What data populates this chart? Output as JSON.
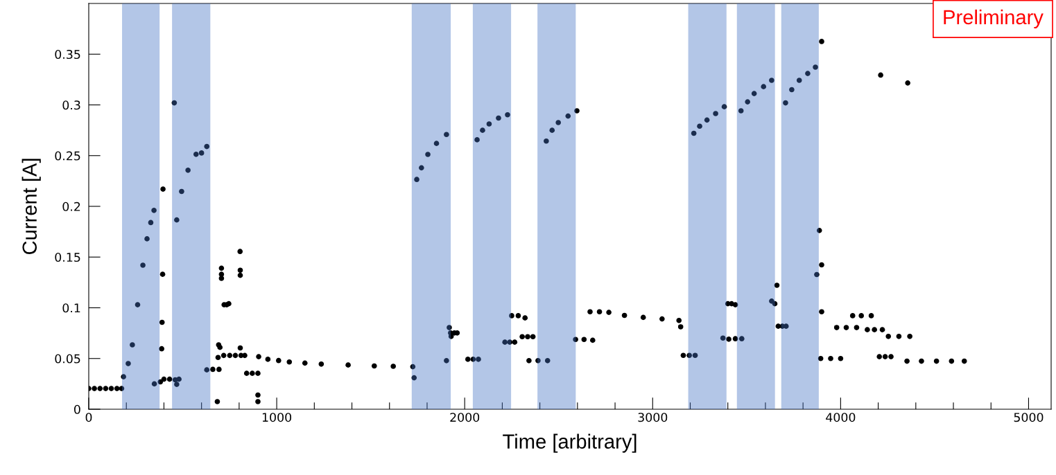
{
  "chart_data": {
    "type": "scatter",
    "xlabel": "Time [arbitrary]",
    "ylabel": "Current [A]",
    "annotations": [
      "Preliminary"
    ],
    "marker": "circle",
    "grid": false,
    "legend": false,
    "xlim": [
      0,
      5120
    ],
    "ylim": [
      0,
      0.4
    ],
    "xticks": [
      0,
      {
        "value": 200,
        "label": null
      },
      {
        "value": 400,
        "label": null
      },
      {
        "value": 600,
        "label": null
      },
      {
        "value": 800,
        "label": null
      },
      1000,
      {
        "value": 1200,
        "label": null
      },
      {
        "value": 1400,
        "label": null
      },
      {
        "value": 1600,
        "label": null
      },
      {
        "value": 1800,
        "label": null
      },
      2000,
      {
        "value": 2200,
        "label": null
      },
      {
        "value": 2400,
        "label": null
      },
      {
        "value": 2600,
        "label": null
      },
      {
        "value": 2800,
        "label": null
      },
      3000,
      {
        "value": 3200,
        "label": null
      },
      {
        "value": 3400,
        "label": null
      },
      {
        "value": 3600,
        "label": null
      },
      {
        "value": 3800,
        "label": null
      },
      4000,
      {
        "value": 4200,
        "label": null
      },
      {
        "value": 4400,
        "label": null
      },
      {
        "value": 4600,
        "label": null
      },
      {
        "value": 4800,
        "label": null
      },
      5000
    ],
    "yticks": [
      0,
      0.05,
      0.1,
      0.15,
      0.2,
      0.25,
      0.3,
      0.35
    ],
    "bands": [
      {
        "axis": "x",
        "from": 181,
        "to": 373,
        "color": "#4472c4"
      },
      {
        "axis": "x",
        "from": 447,
        "to": 643,
        "color": "#4472c4"
      },
      {
        "axis": "x",
        "from": 1722,
        "to": 1922,
        "color": "#4472c4"
      },
      {
        "axis": "x",
        "from": 2047,
        "to": 2243,
        "color": "#4472c4"
      },
      {
        "axis": "x",
        "from": 2391,
        "to": 2587,
        "color": "#4472c4"
      },
      {
        "axis": "x",
        "from": 3193,
        "to": 3389,
        "color": "#4472c4"
      },
      {
        "axis": "x",
        "from": 3452,
        "to": 3647,
        "color": "#4472c4"
      },
      {
        "axis": "x",
        "from": 3688,
        "to": 3880,
        "color": "#4472c4"
      }
    ],
    "series": [
      {
        "color": "#000000",
        "x": [
          0,
          30,
          60,
          90,
          120,
          150,
          175,
          185,
          210,
          232,
          260,
          288,
          310,
          330,
          347,
          349,
          381,
          395,
          393,
          390,
          388,
          400,
          430,
          460,
          480,
          455,
          468,
          468,
          494,
          528,
          571,
          600,
          628,
          628,
          660,
          693,
          684,
          691,
          698,
          688,
          706,
          706,
          706,
          720,
          734,
          745,
          718,
          750,
          780,
          810,
          830,
          805,
          806,
          806,
          806,
          840,
          870,
          900,
          900,
          900,
          904,
          953,
          1010,
          1067,
          1150,
          1237,
          1380,
          1519,
          1620,
          1724,
          1731,
          1745,
          1770,
          1804,
          1850,
          1903,
          1903,
          1918,
          1925,
          1945,
          1960,
          1928,
          2017,
          2045,
          2073,
          2066,
          2095,
          2130,
          2180,
          2228,
          2214,
          2240,
          2266,
          2250,
          2285,
          2321,
          2306,
          2335,
          2363,
          2342,
          2390,
          2441,
          2434,
          2465,
          2498,
          2550,
          2597,
          2590,
          2635,
          2681,
          2667,
          2717,
          2767,
          2850,
          2950,
          3050,
          3140,
          3149,
          3163,
          3195,
          3226,
          3219,
          3250,
          3289,
          3335,
          3381,
          3374,
          3405,
          3440,
          3474,
          3400,
          3420,
          3440,
          3470,
          3505,
          3540,
          3590,
          3633,
          3633,
          3650,
          3661,
          3668,
          3690,
          3710,
          3707,
          3740,
          3780,
          3825,
          3866,
          3899,
          3887,
          3899,
          3873,
          3899,
          3894,
          3947,
          4000,
          3979,
          4030,
          4085,
          4064,
          4110,
          4163,
          4142,
          4180,
          4222,
          4213,
          4206,
          4237,
          4268,
          4254,
          4310,
          4368,
          4357,
          4353,
          4430,
          4510,
          4590,
          4658
        ],
        "values": [
          0.0204,
          0.0204,
          0.0204,
          0.0204,
          0.0204,
          0.0204,
          0.0204,
          0.032,
          0.045,
          0.0635,
          0.103,
          0.142,
          0.168,
          0.184,
          0.196,
          0.025,
          0.027,
          0.217,
          0.133,
          0.0857,
          0.0596,
          0.0296,
          0.0296,
          0.029,
          0.0296,
          0.302,
          0.0245,
          0.1866,
          0.2147,
          0.2356,
          0.2513,
          0.2526,
          0.259,
          0.0388,
          0.0393,
          0.0393,
          0.0075,
          0.0635,
          0.061,
          0.051,
          0.139,
          0.133,
          0.129,
          0.103,
          0.103,
          0.104,
          0.053,
          0.053,
          0.053,
          0.053,
          0.053,
          0.1555,
          0.137,
          0.132,
          0.0604,
          0.0354,
          0.0354,
          0.0354,
          0.014,
          0.0075,
          0.0518,
          0.0492,
          0.048,
          0.0466,
          0.0455,
          0.0445,
          0.0436,
          0.0427,
          0.0423,
          0.0419,
          0.031,
          0.2265,
          0.238,
          0.2512,
          0.262,
          0.2708,
          0.0479,
          0.0805,
          0.0752,
          0.0752,
          0.0752,
          0.0718,
          0.0492,
          0.0492,
          0.0492,
          0.2656,
          0.275,
          0.2812,
          0.287,
          0.2903,
          0.0661,
          0.0661,
          0.0661,
          0.0922,
          0.0922,
          0.09,
          0.0715,
          0.0715,
          0.0715,
          0.0479,
          0.0479,
          0.0479,
          0.2643,
          0.275,
          0.2826,
          0.289,
          0.2942,
          0.0688,
          0.0688,
          0.068,
          0.0961,
          0.0961,
          0.0955,
          0.0925,
          0.0905,
          0.089,
          0.0875,
          0.0812,
          0.0531,
          0.0531,
          0.0531,
          0.272,
          0.279,
          0.2851,
          0.2915,
          0.2982,
          0.0701,
          0.069,
          0.0695,
          0.0695,
          0.104,
          0.104,
          0.103,
          0.2942,
          0.303,
          0.3112,
          0.318,
          0.3242,
          0.1066,
          0.104,
          0.1222,
          0.0818,
          0.0818,
          0.0818,
          0.302,
          0.315,
          0.3242,
          0.331,
          0.3372,
          0.3625,
          0.1762,
          0.1423,
          0.1328,
          0.0961,
          0.05,
          0.05,
          0.05,
          0.0805,
          0.0805,
          0.0805,
          0.0922,
          0.0922,
          0.0922,
          0.0784,
          0.0784,
          0.0784,
          0.3294,
          0.0518,
          0.0518,
          0.0518,
          0.0718,
          0.0718,
          0.0718,
          0.3216,
          0.0474,
          0.0474,
          0.0474,
          0.0474,
          0.0474
        ]
      }
    ]
  }
}
